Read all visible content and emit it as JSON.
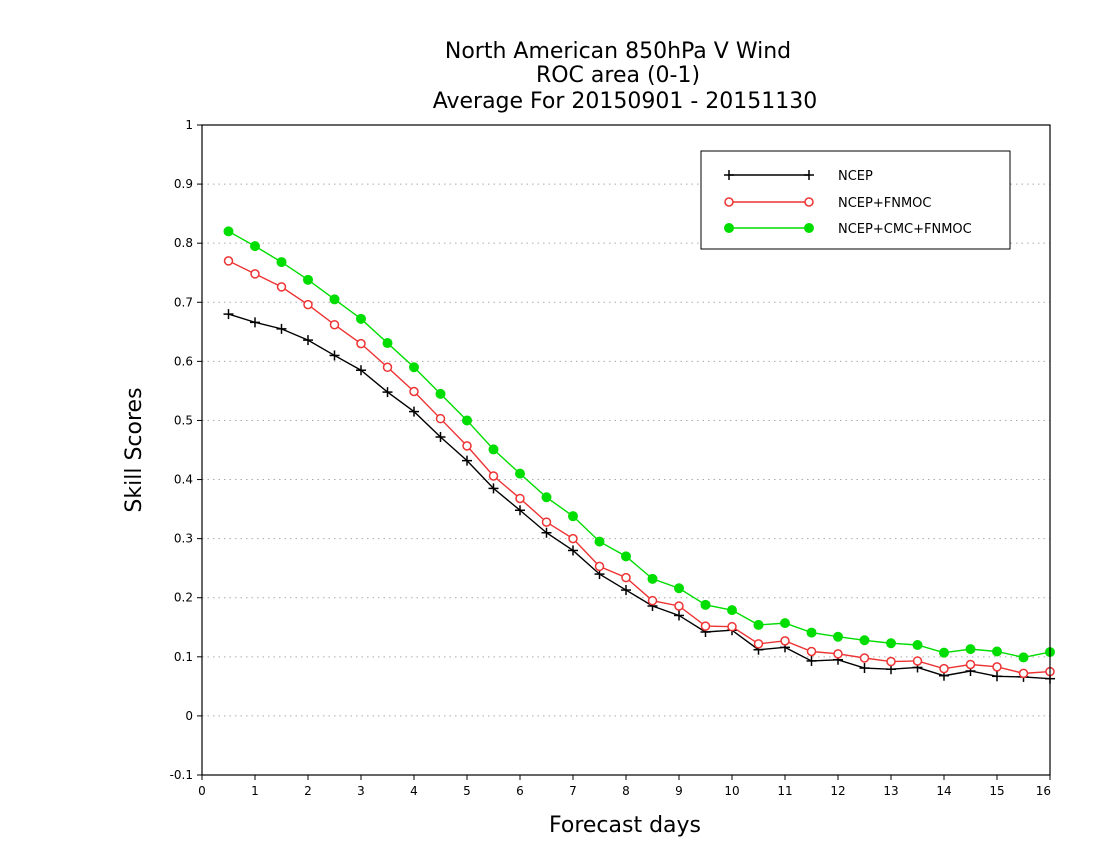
{
  "chart_data": {
    "type": "line",
    "title_lines": [
      "North American 850hPa V Wind",
      "ROC area (0-1)",
      "Average For 20150901 - 20151130"
    ],
    "xlabel": "Forecast days",
    "ylabel": "Skill Scores",
    "xlim": [
      0,
      16
    ],
    "ylim": [
      -0.1,
      1
    ],
    "x_ticks": [
      0,
      1,
      2,
      3,
      4,
      5,
      6,
      7,
      8,
      9,
      10,
      11,
      12,
      13,
      14,
      15,
      16
    ],
    "x_tick_labels": [
      "0",
      "1",
      "2",
      "3",
      "4",
      "5",
      "6",
      "7",
      "8",
      "9",
      "10",
      "11",
      "12",
      "13",
      "14",
      "15",
      "16"
    ],
    "y_ticks": [
      -0.1,
      0,
      0.1,
      0.2,
      0.3,
      0.4,
      0.5,
      0.6,
      0.7,
      0.8,
      0.9,
      1
    ],
    "y_tick_labels": [
      "-0.1",
      "0",
      "0.1",
      "0.2",
      "0.3",
      "0.4",
      "0.5",
      "0.6",
      "0.7",
      "0.8",
      "0.9",
      "1"
    ],
    "grid": true,
    "legend_position": "top-right",
    "x": [
      0.5,
      1,
      1.5,
      2,
      2.5,
      3,
      3.5,
      4,
      4.5,
      5,
      5.5,
      6,
      6.5,
      7,
      7.5,
      8,
      8.5,
      9,
      9.5,
      10,
      10.5,
      11,
      11.5,
      12,
      12.5,
      13,
      13.5,
      14,
      14.5,
      15,
      15.5,
      16
    ],
    "series": [
      {
        "name": "NCEP",
        "color": "#000000",
        "marker": "plus",
        "values": [
          0.68,
          0.666,
          0.655,
          0.636,
          0.61,
          0.585,
          0.548,
          0.515,
          0.472,
          0.432,
          0.385,
          0.348,
          0.31,
          0.28,
          0.24,
          0.213,
          0.186,
          0.17,
          0.142,
          0.145,
          0.112,
          0.116,
          0.093,
          0.095,
          0.081,
          0.079,
          0.082,
          0.068,
          0.076,
          0.067,
          0.066,
          0.063
        ]
      },
      {
        "name": "NCEP+FNMOC",
        "color": "#ee3333",
        "marker": "open-circle",
        "values": [
          0.77,
          0.748,
          0.726,
          0.696,
          0.662,
          0.63,
          0.59,
          0.549,
          0.503,
          0.457,
          0.406,
          0.368,
          0.328,
          0.3,
          0.253,
          0.234,
          0.195,
          0.186,
          0.152,
          0.151,
          0.122,
          0.127,
          0.109,
          0.105,
          0.098,
          0.092,
          0.093,
          0.08,
          0.087,
          0.083,
          0.072,
          0.075
        ]
      },
      {
        "name": "NCEP+CMC+FNMOC",
        "color": "#00dd00",
        "marker": "filled-circle",
        "values": [
          0.82,
          0.795,
          0.768,
          0.738,
          0.705,
          0.672,
          0.631,
          0.59,
          0.545,
          0.5,
          0.451,
          0.41,
          0.37,
          0.338,
          0.295,
          0.27,
          0.232,
          0.216,
          0.188,
          0.179,
          0.154,
          0.157,
          0.141,
          0.134,
          0.128,
          0.123,
          0.12,
          0.107,
          0.113,
          0.109,
          0.099,
          0.108
        ]
      }
    ]
  }
}
